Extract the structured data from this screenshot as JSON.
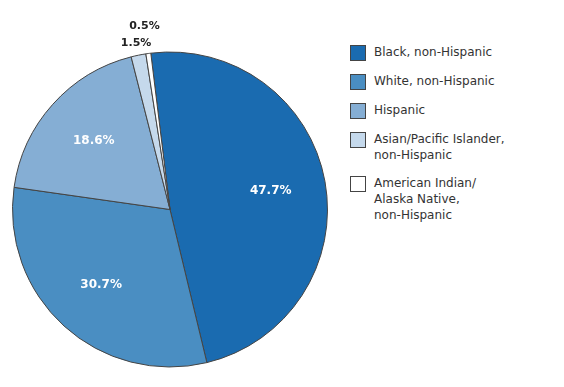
{
  "chart_data": {
    "type": "pie",
    "categories": [
      "Black, non-Hispanic",
      "White, non-Hispanic",
      "Hispanic",
      "Asian/Pacific Islander,\nnon-Hispanic",
      "American Indian/\nAlaska Native,\nnon-Hispanic"
    ],
    "values": [
      47.7,
      30.7,
      18.6,
      1.5,
      0.5
    ],
    "value_labels": [
      "47.7%",
      "30.7%",
      "18.6%",
      "1.5%",
      "0.5%"
    ],
    "colors": [
      "#1A6BB0",
      "#4A8EC2",
      "#85AED4",
      "#C5D9EC",
      "#FFFFFF"
    ],
    "data_labels": true,
    "legend": "right"
  }
}
